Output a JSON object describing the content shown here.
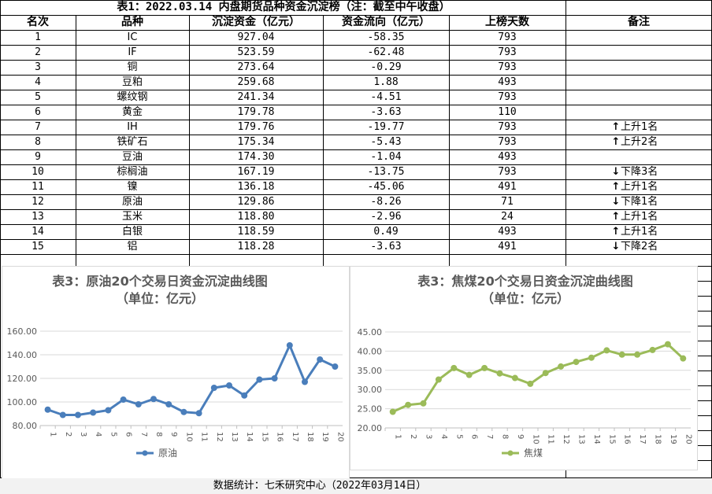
{
  "table": {
    "title": "表1：2022.03.14 内盘期货品种资金沉淀榜（注：截至中午收盘）",
    "headers": [
      "名次",
      "品种",
      "沉淀资金（亿元）",
      "资金流向（亿元）",
      "上榜天数",
      "备注"
    ],
    "rows": [
      {
        "rank": "1",
        "name": "IC",
        "fund": "927.04",
        "flow": "-58.35",
        "days": "793",
        "arrow": "",
        "note": ""
      },
      {
        "rank": "2",
        "name": "IF",
        "fund": "523.59",
        "flow": "-62.48",
        "days": "793",
        "arrow": "",
        "note": ""
      },
      {
        "rank": "3",
        "name": "铜",
        "fund": "273.64",
        "flow": "-0.29",
        "days": "793",
        "arrow": "",
        "note": ""
      },
      {
        "rank": "4",
        "name": "豆粕",
        "fund": "259.68",
        "flow": "1.88",
        "days": "493",
        "arrow": "",
        "note": ""
      },
      {
        "rank": "5",
        "name": "螺纹钢",
        "fund": "241.34",
        "flow": "-4.51",
        "days": "793",
        "arrow": "",
        "note": ""
      },
      {
        "rank": "6",
        "name": "黄金",
        "fund": "179.78",
        "flow": "-3.63",
        "days": "110",
        "arrow": "",
        "note": ""
      },
      {
        "rank": "7",
        "name": "IH",
        "fund": "179.76",
        "flow": "-19.77",
        "days": "793",
        "arrow": "↑",
        "note": "上升1名"
      },
      {
        "rank": "8",
        "name": "铁矿石",
        "fund": "175.34",
        "flow": "-5.43",
        "days": "793",
        "arrow": "↑",
        "note": "上升2名"
      },
      {
        "rank": "9",
        "name": "豆油",
        "fund": "174.30",
        "flow": "-1.04",
        "days": "493",
        "arrow": "",
        "note": ""
      },
      {
        "rank": "10",
        "name": "棕榈油",
        "fund": "167.19",
        "flow": "-13.75",
        "days": "793",
        "arrow": "↓",
        "note": "下降3名"
      },
      {
        "rank": "11",
        "name": "镍",
        "fund": "136.18",
        "flow": "-45.06",
        "days": "491",
        "arrow": "↑",
        "note": "上升1名"
      },
      {
        "rank": "12",
        "name": "原油",
        "fund": "129.86",
        "flow": "-8.26",
        "days": "71",
        "arrow": "↓",
        "note": "下降1名"
      },
      {
        "rank": "13",
        "name": "玉米",
        "fund": "118.80",
        "flow": "-2.96",
        "days": "24",
        "arrow": "↑",
        "note": "上升1名"
      },
      {
        "rank": "14",
        "name": "白银",
        "fund": "118.59",
        "flow": "0.49",
        "days": "493",
        "arrow": "↑",
        "note": "上升1名"
      },
      {
        "rank": "15",
        "name": "铝",
        "fund": "118.28",
        "flow": "-3.63",
        "days": "491",
        "arrow": "↓",
        "note": "下降2名"
      }
    ]
  },
  "footer": "数据统计：七禾研究中心（2022年03月14日）",
  "chart_data": [
    {
      "type": "line",
      "title": "表3：原油20个交易日资金沉淀曲线图",
      "subtitle": "（单位：亿元）",
      "x": [
        "1",
        "2",
        "3",
        "4",
        "5",
        "6",
        "7",
        "8",
        "9",
        "10",
        "11",
        "12",
        "13",
        "14",
        "15",
        "16",
        "17",
        "18",
        "19",
        "20"
      ],
      "series": [
        {
          "name": "原油",
          "color": "#4a7ebb",
          "values": [
            93.5,
            89,
            89,
            91,
            93,
            102,
            98,
            102.5,
            98,
            91.5,
            90.5,
            112,
            114,
            105.5,
            119,
            120,
            148,
            117,
            136,
            130
          ]
        }
      ],
      "yticks": [
        "80.00",
        "100.00",
        "120.00",
        "140.00",
        "160.00"
      ],
      "ylim": [
        80,
        160
      ],
      "legend": "bottom"
    },
    {
      "type": "line",
      "title": "表3：焦煤20个交易日资金沉淀曲线图",
      "subtitle": "（单位：亿元）",
      "x": [
        "1",
        "2",
        "3",
        "4",
        "5",
        "6",
        "7",
        "8",
        "9",
        "10",
        "11",
        "12",
        "13",
        "14",
        "15",
        "16",
        "17",
        "18",
        "19",
        "20"
      ],
      "series": [
        {
          "name": "焦煤",
          "color": "#9bbb59",
          "values": [
            24.2,
            26,
            26.4,
            32.6,
            35.6,
            33.8,
            35.6,
            34.2,
            33,
            31.5,
            34.3,
            36,
            37.2,
            38.3,
            40.2,
            39.1,
            39.1,
            40.3,
            41.8,
            38.1
          ]
        }
      ],
      "yticks": [
        "20.00",
        "25.00",
        "30.00",
        "35.00",
        "40.00",
        "45.00"
      ],
      "ylim": [
        20,
        45
      ],
      "legend": "bottom"
    }
  ]
}
